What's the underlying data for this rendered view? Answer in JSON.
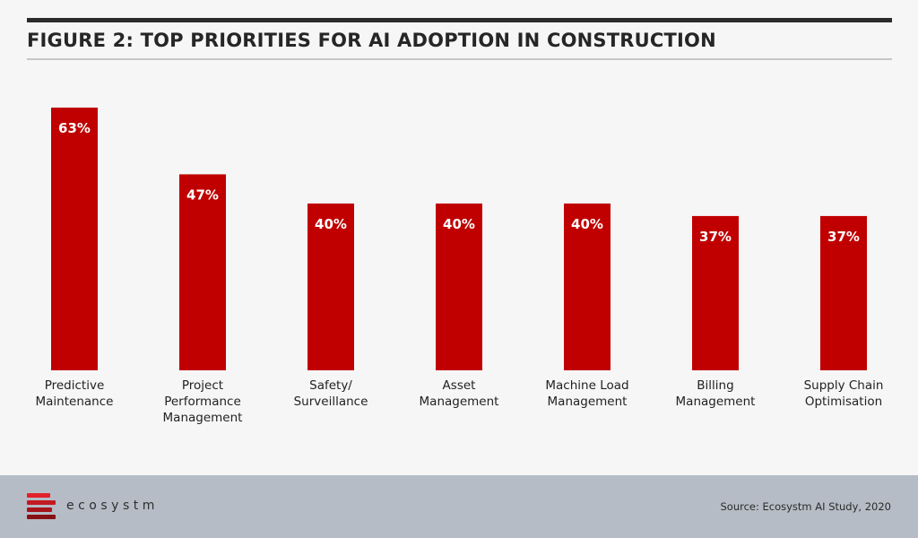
{
  "title": "FIGURE 2: TOP PRIORITIES FOR AI ADOPTION IN CONSTRUCTION",
  "chart_data": {
    "type": "bar",
    "title": "FIGURE 2: TOP PRIORITIES FOR AI ADOPTION IN CONSTRUCTION",
    "categories": [
      [
        "Predictive",
        "Maintenance"
      ],
      [
        "Project",
        "Performance",
        "Management"
      ],
      [
        "Safety/",
        "Surveillance"
      ],
      [
        "Asset",
        "Management"
      ],
      [
        "Machine Load",
        "Management"
      ],
      [
        "Billing",
        "Management"
      ],
      [
        "Supply Chain",
        "Optimisation"
      ]
    ],
    "values": [
      63,
      47,
      40,
      40,
      40,
      37,
      37
    ],
    "data_labels": [
      "63%",
      "47%",
      "40%",
      "40%",
      "40%",
      "37%",
      "37%"
    ],
    "ylim": [
      0,
      63
    ],
    "grid": false,
    "bar_color": "#c00000"
  },
  "footer": {
    "brand": "ecosystm",
    "source": "Source: Ecosystm AI Study, 2020",
    "logo_colors": [
      "#e2202a",
      "#c31a22",
      "#a5151b",
      "#871014"
    ]
  }
}
